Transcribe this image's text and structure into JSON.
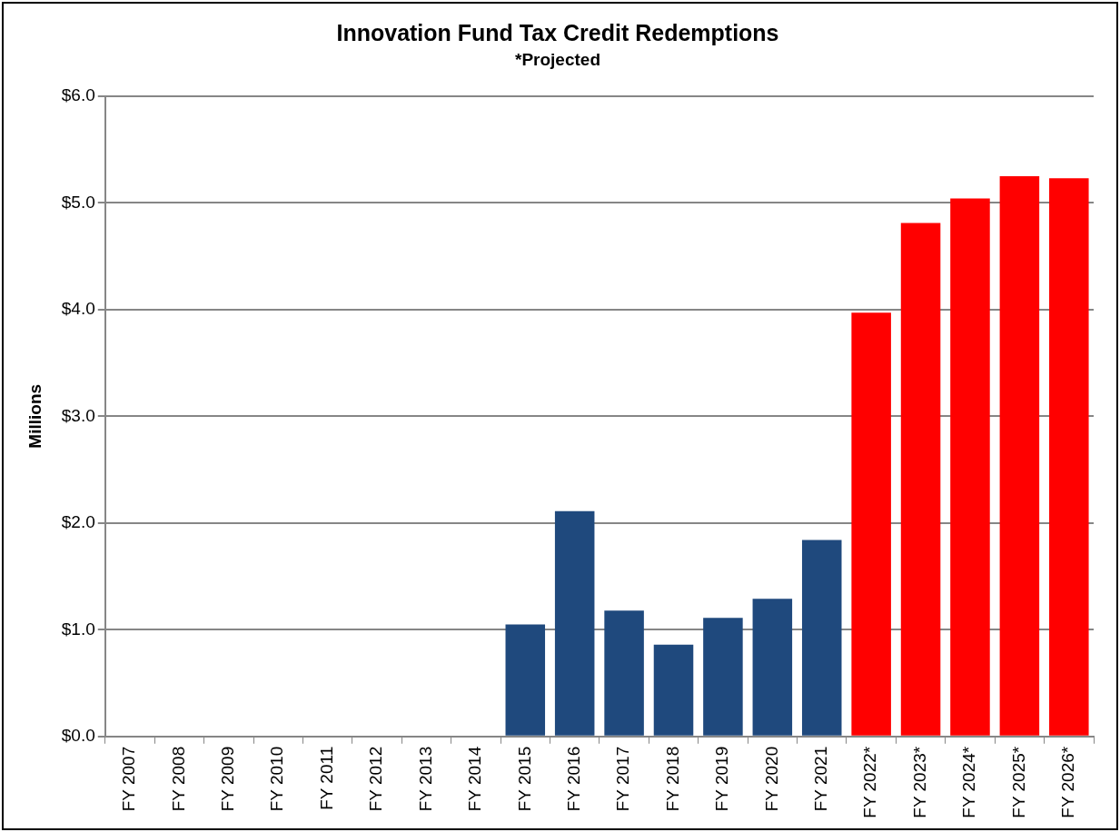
{
  "chart_data": {
    "type": "bar",
    "title": "Innovation Fund Tax Credit Redemptions",
    "subtitle": "*Projected",
    "ylabel": "Millions",
    "categories": [
      "FY 2007",
      "FY 2008",
      "FY 2009",
      "FY 2010",
      "FY 2011",
      "FY 2012",
      "FY 2013",
      "FY 2014",
      "FY 2015",
      "FY 2016",
      "FY 2017",
      "FY 2018",
      "FY 2019",
      "FY 2020",
      "FY 2021",
      "FY 2022*",
      "FY 2023*",
      "FY 2024*",
      "FY 2025*",
      "FY 2026*"
    ],
    "values": [
      0,
      0,
      0,
      0,
      0,
      0,
      0,
      0,
      1.05,
      2.11,
      1.18,
      0.86,
      1.11,
      1.29,
      1.84,
      3.97,
      4.81,
      5.04,
      5.25,
      5.23
    ],
    "colors": [
      "#1f497d",
      "#1f497d",
      "#1f497d",
      "#1f497d",
      "#1f497d",
      "#1f497d",
      "#1f497d",
      "#1f497d",
      "#1f497d",
      "#1f497d",
      "#1f497d",
      "#1f497d",
      "#1f497d",
      "#1f497d",
      "#1f497d",
      "#ff0000",
      "#ff0000",
      "#ff0000",
      "#ff0000",
      "#ff0000"
    ],
    "ylim": [
      0,
      6
    ],
    "yticks": [
      {
        "value": 0,
        "label": "$0.0"
      },
      {
        "value": 1,
        "label": "$1.0"
      },
      {
        "value": 2,
        "label": "$2.0"
      },
      {
        "value": 3,
        "label": "$3.0"
      },
      {
        "value": 4,
        "label": "$4.0"
      },
      {
        "value": 5,
        "label": "$5.0"
      },
      {
        "value": 6,
        "label": "$6.0"
      }
    ],
    "grid": "y",
    "legend": false
  }
}
